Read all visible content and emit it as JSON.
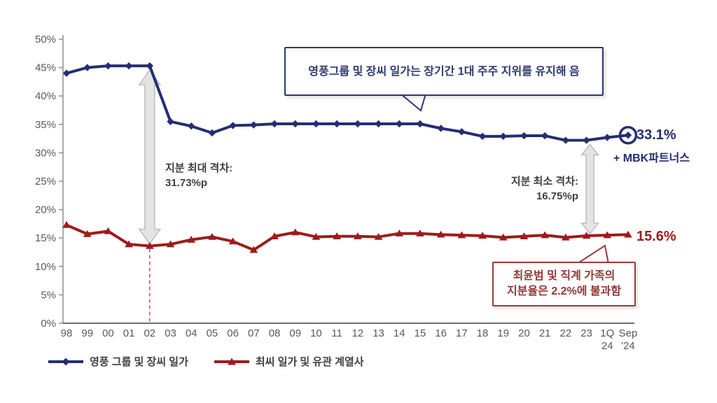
{
  "colors": {
    "navy": "#262d72",
    "red": "#9e1b1b",
    "axis_y": "#8f8f8f",
    "axis_x": "#3f3f3f",
    "tick_text": "#595959",
    "arrow_fill": "#e4e4e4",
    "arrow_stroke": "#bdbdbd",
    "dashed_line": "#b86060",
    "bubble_blue_border": "#2d3a6b",
    "bubble_red_border": "#9c3a38"
  },
  "chart_data": {
    "type": "line",
    "title": "",
    "xlabel": "",
    "ylabel": "",
    "ylim": [
      0,
      50
    ],
    "grid": false,
    "legend_position": "bottom-left",
    "y_tick_labels": [
      "0%",
      "5%",
      "10%",
      "15%",
      "20%",
      "25%",
      "30%",
      "35%",
      "40%",
      "45%",
      "50%"
    ],
    "y_tick_values": [
      0,
      5,
      10,
      15,
      20,
      25,
      30,
      35,
      40,
      45,
      50
    ],
    "categories": [
      "98",
      "99",
      "00",
      "01",
      "02",
      "03",
      "04",
      "05",
      "06",
      "07",
      "08",
      "09",
      "10",
      "11",
      "12",
      "13",
      "14",
      "15",
      "16",
      "17",
      "18",
      "19",
      "20",
      "21",
      "22",
      "23",
      "1Q 24",
      "Sep '24"
    ],
    "series": [
      {
        "name": "영풍 그룹 및 장씨 일가",
        "marker": "diamond",
        "color": "#262d72",
        "values": [
          44.0,
          45.0,
          45.3,
          45.3,
          45.3,
          35.5,
          34.7,
          33.5,
          34.8,
          34.9,
          35.1,
          35.1,
          35.1,
          35.1,
          35.1,
          35.1,
          35.1,
          35.1,
          34.3,
          33.7,
          32.9,
          32.9,
          33.0,
          33.0,
          32.2,
          32.2,
          32.7,
          33.1
        ]
      },
      {
        "name": "최씨 일가 및 유관 계열사",
        "marker": "triangle",
        "color": "#9e1b1b",
        "values": [
          17.3,
          15.7,
          16.2,
          13.9,
          13.6,
          13.9,
          14.7,
          15.2,
          14.4,
          12.9,
          15.3,
          16.0,
          15.2,
          15.3,
          15.3,
          15.2,
          15.8,
          15.8,
          15.6,
          15.5,
          15.4,
          15.1,
          15.3,
          15.5,
          15.1,
          15.4,
          15.5,
          15.6
        ]
      }
    ],
    "endpoint_ring_series": 0
  },
  "annotations": {
    "top_bubble": {
      "text": "영풍그룹 및 장씨 일가는 장기간 1대 주주 지위를 유지해 음"
    },
    "max_gap": {
      "line1": "지분 최대 격차:",
      "line2": "31.73%p",
      "category": "02"
    },
    "min_gap": {
      "line1": "지분 최소 격차:",
      "line2": "16.75%p",
      "category": "23"
    },
    "blue_end": {
      "value": "33.1%",
      "sub": "+ MBK파트너스"
    },
    "red_end": {
      "value": "15.6%"
    },
    "red_bubble": {
      "line1": "최윤범 및 직계 가족의",
      "line2": "지분율은 2.2%에 불과함"
    }
  },
  "legend": {
    "items": [
      {
        "label": "영풍 그룹 및 장씨 일가"
      },
      {
        "label": "최씨 일가 및 유관 계열사"
      }
    ]
  }
}
